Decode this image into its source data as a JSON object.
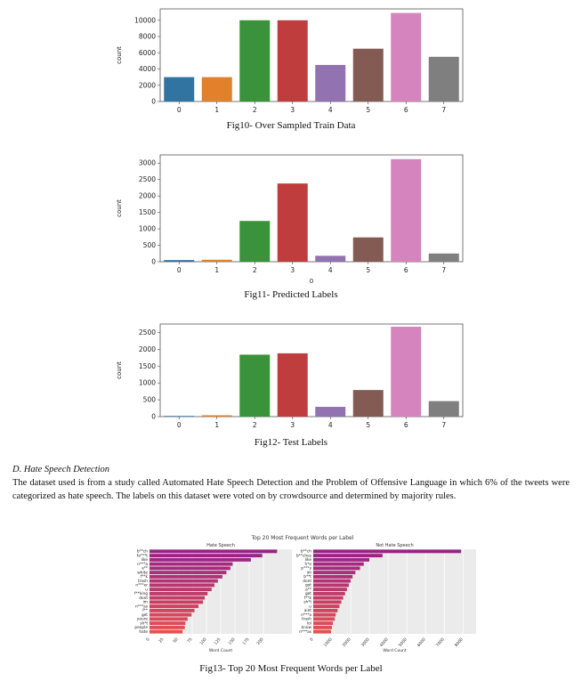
{
  "figures": [
    {
      "caption": "Fig10- Over Sampled Train Data",
      "chart_data": {
        "type": "bar",
        "categories": [
          "0",
          "1",
          "2",
          "3",
          "4",
          "5",
          "6",
          "7"
        ],
        "values": [
          3000,
          3000,
          10000,
          10000,
          4500,
          6500,
          10900,
          5500
        ],
        "ylabel": "count",
        "xlabel": "",
        "ylim": [
          0,
          11400
        ],
        "yticks": [
          0,
          2000,
          4000,
          6000,
          8000,
          10000
        ],
        "colors": [
          "#3274a1",
          "#e1812c",
          "#3a923a",
          "#c03d3e",
          "#9372b2",
          "#845b53",
          "#d684bd",
          "#7f7f7f"
        ]
      }
    },
    {
      "caption": "Fig11- Predicted Labels",
      "chart_data": {
        "type": "bar",
        "categories": [
          "0",
          "1",
          "2",
          "3",
          "4",
          "5",
          "6",
          "7"
        ],
        "values": [
          50,
          60,
          1240,
          2380,
          180,
          740,
          3120,
          250
        ],
        "ylabel": "count",
        "xlabel": "0",
        "ylim": [
          0,
          3250
        ],
        "yticks": [
          0,
          500,
          1000,
          1500,
          2000,
          2500,
          3000
        ],
        "colors": [
          "#3274a1",
          "#e1812c",
          "#3a923a",
          "#c03d3e",
          "#9372b2",
          "#845b53",
          "#d684bd",
          "#7f7f7f"
        ]
      }
    },
    {
      "caption": "Fig12- Test Labels",
      "chart_data": {
        "type": "bar",
        "categories": [
          "0",
          "1",
          "2",
          "3",
          "4",
          "5",
          "6",
          "7"
        ],
        "values": [
          20,
          40,
          1840,
          1880,
          290,
          790,
          2670,
          460
        ],
        "ylabel": "count",
        "xlabel": "",
        "ylim": [
          0,
          2750
        ],
        "yticks": [
          0,
          500,
          1000,
          1500,
          2000,
          2500
        ],
        "colors": [
          "#3274a1",
          "#e1812c",
          "#3a923a",
          "#c03d3e",
          "#9372b2",
          "#845b53",
          "#d684bd",
          "#7f7f7f"
        ]
      }
    }
  ],
  "section": {
    "heading": "D.   Hate Speech Detection",
    "body": "The dataset used is from a study called Automated Hate Speech Detection and the Problem of Offensive Language in which 6% of the tweets were categorized as hate speech. The labels on this dataset were voted on by crowdsource and determined by majority rules."
  },
  "fig13": {
    "caption": "Fig13- Top 20 Most Frequent Words per Label",
    "title": "Top 20 Most Frequent Words per Label",
    "chart_data": [
      {
        "type": "bar",
        "orientation": "horizontal",
        "title": "Hate Speech",
        "xlabel": "Word Count",
        "xlim": [
          0,
          250
        ],
        "xticks": [
          0,
          25,
          50,
          75,
          100,
          125,
          150,
          175,
          200
        ],
        "categories": [
          "b**ch",
          "fa***t",
          "like",
          "n***a",
          "a**",
          "white",
          "f**k",
          "trash",
          "n***er",
          "u",
          "f**king",
          "dont",
          "im",
          "n***as",
          "f**",
          "get",
          "youre",
          "sh*t",
          "people",
          "hate"
        ],
        "values": [
          224,
          198,
          178,
          146,
          142,
          135,
          128,
          120,
          114,
          109,
          102,
          97,
          94,
          86,
          79,
          74,
          67,
          63,
          62,
          58
        ]
      },
      {
        "type": "bar",
        "orientation": "horizontal",
        "title": "Not Hate Speech",
        "xlabel": "Word Count",
        "xlim": [
          0,
          8700
        ],
        "xticks": [
          0,
          1000,
          2000,
          3000,
          4000,
          5000,
          6000,
          7000,
          8000
        ],
        "categories": [
          "b**ch",
          "b**ches",
          "like",
          "h*e",
          "p***y",
          "im",
          "b**t",
          "dont",
          "got",
          "a**",
          "get",
          "f**k",
          "sh*t",
          "u",
          "aint",
          "n***a",
          "trash",
          "lol",
          "know",
          "n***as"
        ],
        "values": [
          7900,
          3700,
          3000,
          2700,
          2500,
          2250,
          2100,
          2000,
          1900,
          1800,
          1700,
          1600,
          1500,
          1400,
          1300,
          1200,
          1150,
          1050,
          1000,
          950
        ]
      }
    ]
  }
}
